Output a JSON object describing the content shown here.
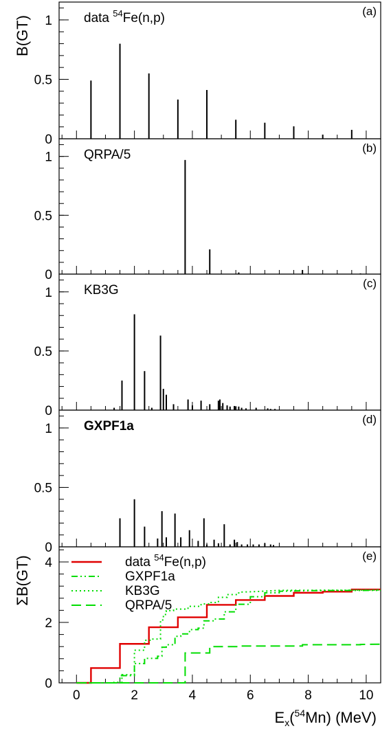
{
  "figure": {
    "ylabel_top": "B(GT)",
    "ylabel_bottom": "ΣB(GT)",
    "xlabel": {
      "prefix": "E",
      "sub": "x",
      "mid1": "(",
      "sup": "54",
      "mid2": "Mn) (MeV)"
    }
  },
  "colors": {
    "data": "#e00000",
    "theory": "#00dd00",
    "axis": "#000000"
  },
  "chart_data": [
    {
      "type": "bar",
      "panel": "(a)",
      "title": "data 54Fe(n,p)",
      "title_parts": {
        "pre": "data ",
        "sup": "54",
        "post": "Fe(n,p)"
      },
      "xlim": [
        -0.6,
        10.5
      ],
      "ylim": [
        0,
        1.15
      ],
      "yticks": [
        0,
        0.5,
        1
      ],
      "yticklabels": [
        "0",
        "0.5",
        "1"
      ],
      "x": [
        0.5,
        1.5,
        2.5,
        3.5,
        4.5,
        5.5,
        6.5,
        7.5,
        8.5,
        9.5
      ],
      "values": [
        0.49,
        0.8,
        0.55,
        0.33,
        0.41,
        0.16,
        0.135,
        0.105,
        0.035,
        0.075
      ]
    },
    {
      "type": "bar",
      "panel": "(b)",
      "title": "QRPA/5",
      "xlim": [
        -0.6,
        10.5
      ],
      "ylim": [
        0,
        1.15
      ],
      "yticks": [
        0,
        0.5,
        1
      ],
      "yticklabels": [
        "0",
        "0.5",
        "1"
      ],
      "x": [
        2.4,
        3.75,
        4.6,
        5.6,
        7.8,
        9.8
      ],
      "values": [
        0.004,
        0.97,
        0.21,
        0.014,
        0.035,
        0.006
      ]
    },
    {
      "type": "bar",
      "panel": "(c)",
      "title": "KB3G",
      "xlim": [
        -0.6,
        10.5
      ],
      "ylim": [
        0,
        1.15
      ],
      "yticks": [
        0,
        0.5,
        1
      ],
      "yticklabels": [
        "0",
        "0.5",
        "1"
      ],
      "x": [
        1.3,
        1.57,
        2.0,
        2.35,
        2.6,
        2.9,
        3.0,
        3.1,
        3.35,
        3.85,
        4.0,
        4.3,
        4.6,
        4.9,
        4.95,
        5.05,
        5.2,
        5.3,
        5.45,
        5.5,
        5.6,
        5.7,
        5.85,
        6.2,
        6.6,
        6.7,
        6.85
      ],
      "values": [
        0.02,
        0.25,
        0.81,
        0.33,
        0.02,
        0.63,
        0.18,
        0.13,
        0.05,
        0.09,
        0.04,
        0.08,
        0.05,
        0.08,
        0.09,
        0.06,
        0.04,
        0.03,
        0.035,
        0.03,
        0.03,
        0.02,
        0.015,
        0.02,
        0.015,
        0.01,
        0.01
      ]
    },
    {
      "type": "bar",
      "panel": "(d)",
      "title": "GXPF1a",
      "xlim": [
        -0.6,
        10.5
      ],
      "ylim": [
        0,
        1.15
      ],
      "yticks": [
        0,
        0.5,
        1
      ],
      "yticklabels": [
        "0",
        "0.5",
        "1"
      ],
      "x": [
        1.5,
        2.0,
        2.35,
        2.8,
        2.95,
        3.1,
        3.4,
        3.6,
        3.9,
        4.2,
        4.4,
        4.5,
        4.75,
        4.9,
        5.1,
        5.3,
        5.45,
        5.55,
        5.7,
        5.9,
        6.1,
        6.3,
        6.5,
        6.7,
        6.8
      ],
      "values": [
        0.24,
        0.4,
        0.17,
        0.07,
        0.3,
        0.08,
        0.28,
        0.08,
        0.14,
        0.05,
        0.24,
        0.02,
        0.06,
        0.03,
        0.19,
        0.02,
        0.06,
        0.04,
        0.02,
        0.02,
        0.02,
        0.02,
        0.03,
        0.02,
        0.015
      ]
    },
    {
      "type": "line",
      "panel": "(e)",
      "xlim": [
        -0.6,
        10.5
      ],
      "ylim": [
        0,
        4.5
      ],
      "yticks": [
        0,
        2,
        4
      ],
      "yticklabels": [
        "0",
        "2",
        "4"
      ],
      "xticks": [
        0,
        2,
        4,
        6,
        8,
        10
      ],
      "xticklabels": [
        "0",
        "2",
        "4",
        "6",
        "8",
        "10"
      ],
      "legend_position": "top-left",
      "series": [
        {
          "name": "data 54Fe(n,p)",
          "label_parts": {
            "pre": "data ",
            "sup": "54",
            "post": "Fe(n,p)"
          },
          "style": "solid",
          "color": "#e00000",
          "step": true,
          "points": [
            [
              0,
              0
            ],
            [
              0.5,
              0
            ],
            [
              0.5,
              0.49
            ],
            [
              1.5,
              0.49
            ],
            [
              1.5,
              1.29
            ],
            [
              2.5,
              1.29
            ],
            [
              2.5,
              1.84
            ],
            [
              3.5,
              1.84
            ],
            [
              3.5,
              2.17
            ],
            [
              4.5,
              2.17
            ],
            [
              4.5,
              2.58
            ],
            [
              5.5,
              2.58
            ],
            [
              5.5,
              2.74
            ],
            [
              6.5,
              2.74
            ],
            [
              6.5,
              2.875
            ],
            [
              7.5,
              2.875
            ],
            [
              7.5,
              2.98
            ],
            [
              8.5,
              2.98
            ],
            [
              8.5,
              3.015
            ],
            [
              9.5,
              3.015
            ],
            [
              9.5,
              3.09
            ],
            [
              10.5,
              3.09
            ]
          ]
        },
        {
          "name": "GXPF1a",
          "style": "dashdotdot",
          "color": "#00dd00",
          "step": true,
          "points": [
            [
              0,
              0
            ],
            [
              1.5,
              0
            ],
            [
              1.5,
              0.24
            ],
            [
              2.0,
              0.24
            ],
            [
              2.0,
              0.64
            ],
            [
              2.35,
              0.64
            ],
            [
              2.35,
              0.81
            ],
            [
              2.8,
              0.81
            ],
            [
              2.8,
              0.88
            ],
            [
              2.95,
              0.88
            ],
            [
              2.95,
              1.18
            ],
            [
              3.1,
              1.18
            ],
            [
              3.1,
              1.26
            ],
            [
              3.4,
              1.26
            ],
            [
              3.4,
              1.54
            ],
            [
              3.6,
              1.54
            ],
            [
              3.6,
              1.62
            ],
            [
              3.9,
              1.62
            ],
            [
              3.9,
              1.76
            ],
            [
              4.2,
              1.76
            ],
            [
              4.2,
              1.81
            ],
            [
              4.4,
              1.81
            ],
            [
              4.4,
              2.05
            ],
            [
              4.75,
              2.05
            ],
            [
              4.75,
              2.11
            ],
            [
              5.1,
              2.11
            ],
            [
              5.1,
              2.35
            ],
            [
              5.5,
              2.35
            ],
            [
              5.5,
              2.6
            ],
            [
              6.0,
              2.6
            ],
            [
              6.0,
              2.85
            ],
            [
              6.5,
              2.85
            ],
            [
              6.5,
              2.98
            ],
            [
              7.0,
              2.98
            ],
            [
              7.0,
              3.03
            ],
            [
              8.0,
              3.05
            ],
            [
              10.5,
              3.06
            ]
          ]
        },
        {
          "name": "KB3G",
          "style": "dotted",
          "color": "#00dd00",
          "step": true,
          "points": [
            [
              0,
              0
            ],
            [
              1.3,
              0
            ],
            [
              1.3,
              0.02
            ],
            [
              1.57,
              0.02
            ],
            [
              1.57,
              0.27
            ],
            [
              2.0,
              0.27
            ],
            [
              2.0,
              1.08
            ],
            [
              2.35,
              1.08
            ],
            [
              2.35,
              1.41
            ],
            [
              2.6,
              1.41
            ],
            [
              2.6,
              1.45
            ],
            [
              2.9,
              1.45
            ],
            [
              2.9,
              2.08
            ],
            [
              3.0,
              2.08
            ],
            [
              3.0,
              2.26
            ],
            [
              3.1,
              2.26
            ],
            [
              3.1,
              2.39
            ],
            [
              3.35,
              2.39
            ],
            [
              3.35,
              2.44
            ],
            [
              3.85,
              2.44
            ],
            [
              3.85,
              2.53
            ],
            [
              4.3,
              2.53
            ],
            [
              4.3,
              2.61
            ],
            [
              4.6,
              2.61
            ],
            [
              4.6,
              2.66
            ],
            [
              4.9,
              2.66
            ],
            [
              4.9,
              2.83
            ],
            [
              5.2,
              2.83
            ],
            [
              5.2,
              2.92
            ],
            [
              5.6,
              2.92
            ],
            [
              5.6,
              3.0
            ],
            [
              6.2,
              3.02
            ],
            [
              7.0,
              3.06
            ],
            [
              10.5,
              3.07
            ]
          ]
        },
        {
          "name": "QRPA/5",
          "style": "dashed",
          "color": "#00dd00",
          "step": true,
          "points": [
            [
              0,
              0
            ],
            [
              3.75,
              0
            ],
            [
              3.75,
              0.99
            ],
            [
              4.6,
              0.99
            ],
            [
              4.6,
              1.2
            ],
            [
              5.6,
              1.2
            ],
            [
              5.6,
              1.22
            ],
            [
              7.8,
              1.22
            ],
            [
              7.8,
              1.26
            ],
            [
              9.8,
              1.26
            ],
            [
              9.8,
              1.27
            ],
            [
              10.5,
              1.28
            ]
          ]
        }
      ]
    }
  ]
}
